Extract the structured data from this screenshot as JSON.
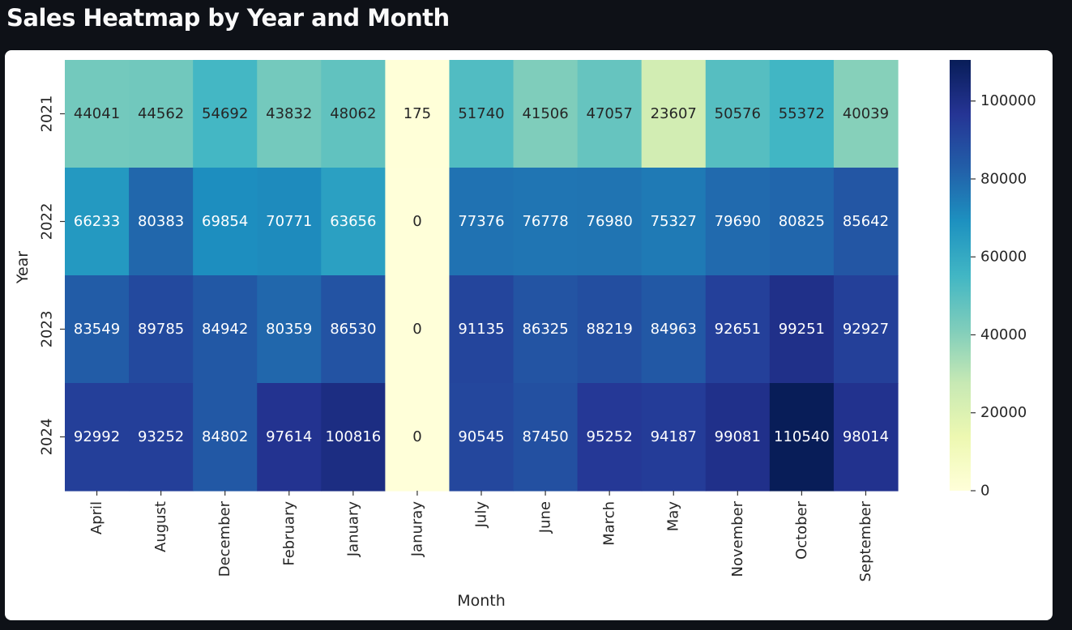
{
  "page": {
    "title": "Sales Heatmap by Year and Month"
  },
  "chart_data": {
    "type": "heatmap",
    "title": "",
    "xlabel": "Month",
    "ylabel": "Year",
    "x": [
      "April",
      "August",
      "December",
      "February",
      "January",
      "Januray",
      "July",
      "June",
      "March",
      "May",
      "November",
      "October",
      "September"
    ],
    "y": [
      "2021",
      "2022",
      "2023",
      "2024"
    ],
    "values": [
      [
        44041,
        44562,
        54692,
        43832,
        48062,
        175,
        51740,
        41506,
        47057,
        23607,
        50576,
        55372,
        40039
      ],
      [
        66233,
        80383,
        69854,
        70771,
        63656,
        0,
        77376,
        76778,
        76980,
        75327,
        79690,
        80825,
        85642
      ],
      [
        83549,
        89785,
        84942,
        80359,
        86530,
        0,
        91135,
        86325,
        88219,
        84963,
        92651,
        99251,
        92927
      ],
      [
        92992,
        93252,
        84802,
        97614,
        100816,
        0,
        90545,
        87450,
        95252,
        94187,
        99081,
        110540,
        98014
      ]
    ],
    "colormap": "YlGnBu",
    "colorbar": {
      "min": 0,
      "max": 110540,
      "ticks": [
        0,
        20000,
        40000,
        60000,
        80000,
        100000
      ]
    },
    "annotations": "cell values shown",
    "grid": false
  }
}
